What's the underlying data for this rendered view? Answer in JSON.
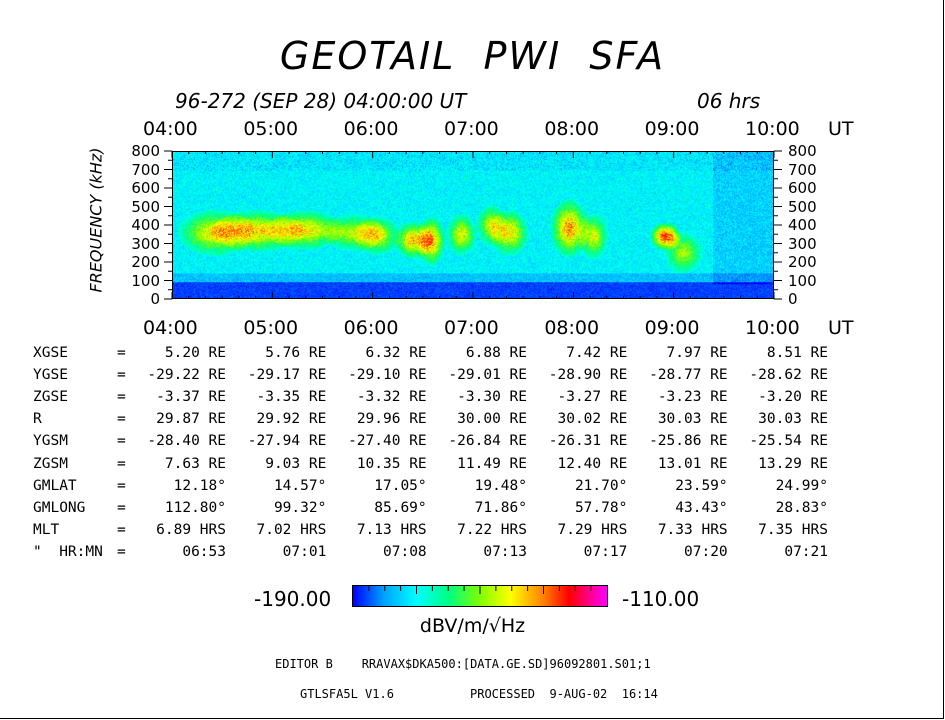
{
  "title": "GEOTAIL  PWI  SFA",
  "date_label": "96-272 (SEP 28) 04:00:00 UT",
  "span_label": "06 hrs",
  "time_axis": [
    "04:00",
    "05:00",
    "06:00",
    "07:00",
    "08:00",
    "09:00",
    "10:00"
  ],
  "time_unit": "UT",
  "y_axis_label": "FREQUENCY (kHz)",
  "y_ticks": [
    "800",
    "700",
    "600",
    "500",
    "400",
    "300",
    "200",
    "100",
    "0"
  ],
  "chart_data": {
    "type": "heatmap",
    "title": "GEOTAIL  PWI  SFA",
    "xlabel": "UT",
    "ylabel": "FREQUENCY (kHz)",
    "x_range": [
      "04:00",
      "10:00"
    ],
    "ylim": [
      0,
      800
    ],
    "colorbar": {
      "min": -190.0,
      "max": -110.0,
      "unit": "dBV/m/√Hz"
    },
    "colormap": [
      "#0000ff",
      "#00a0ff",
      "#00ffff",
      "#00ff80",
      "#80ff00",
      "#ffff00",
      "#ff8000",
      "#ff0000",
      "#ff00ff"
    ]
  },
  "table": {
    "rows": [
      {
        "label": "XGSE",
        "eq": "=",
        "cells": [
          "5.20 RE",
          "5.76 RE",
          "6.32 RE",
          "6.88 RE",
          "7.42 RE",
          "7.97 RE",
          "8.51 RE"
        ]
      },
      {
        "label": "YGSE",
        "eq": "=",
        "cells": [
          "-29.22 RE",
          "-29.17 RE",
          "-29.10 RE",
          "-29.01 RE",
          "-28.90 RE",
          "-28.77 RE",
          "-28.62 RE"
        ]
      },
      {
        "label": "ZGSE",
        "eq": "=",
        "cells": [
          "-3.37 RE",
          "-3.35 RE",
          "-3.32 RE",
          "-3.30 RE",
          "-3.27 RE",
          "-3.23 RE",
          "-3.20 RE"
        ]
      },
      {
        "label": "R",
        "eq": "=",
        "cells": [
          "29.87 RE",
          "29.92 RE",
          "29.96 RE",
          "30.00 RE",
          "30.02 RE",
          "30.03 RE",
          "30.03 RE"
        ]
      },
      {
        "label": "YGSM",
        "eq": "=",
        "cells": [
          "-28.40 RE",
          "-27.94 RE",
          "-27.40 RE",
          "-26.84 RE",
          "-26.31 RE",
          "-25.86 RE",
          "-25.54 RE"
        ]
      },
      {
        "label": "ZGSM",
        "eq": "=",
        "cells": [
          "7.63 RE",
          "9.03 RE",
          "10.35 RE",
          "11.49 RE",
          "12.40 RE",
          "13.01 RE",
          "13.29 RE"
        ]
      },
      {
        "label": "GMLAT",
        "eq": "=",
        "cells": [
          "12.18°",
          "14.57°",
          "17.05°",
          "19.48°",
          "21.70°",
          "23.59°",
          "24.99°"
        ]
      },
      {
        "label": "GMLONG",
        "eq": "=",
        "cells": [
          "112.80°",
          "99.32°",
          "85.69°",
          "71.86°",
          "57.78°",
          "43.43°",
          "28.83°"
        ]
      },
      {
        "label": "MLT",
        "eq": "=",
        "cells": [
          "6.89 HRS",
          "7.02 HRS",
          "7.13 HRS",
          "7.22 HRS",
          "7.29 HRS",
          "7.33 HRS",
          "7.35 HRS"
        ]
      },
      {
        "label": "\"  HR:MN",
        "eq": "=",
        "cells": [
          "06:53",
          "07:01",
          "07:08",
          "07:13",
          "07:17",
          "07:20",
          "07:21"
        ]
      }
    ]
  },
  "colorbar_min_label": "-190.00",
  "colorbar_max_label": "-110.00",
  "colorbar_unit": "dBV/m/√Hz",
  "footer_editor": "EDITOR B    RRAVAX$DKA500:[DATA.GE.SD]96092801.S01;1",
  "footer_version": "GTLSFA5L V1.6",
  "footer_processed": "PROCESSED  9-AUG-02  16:14"
}
